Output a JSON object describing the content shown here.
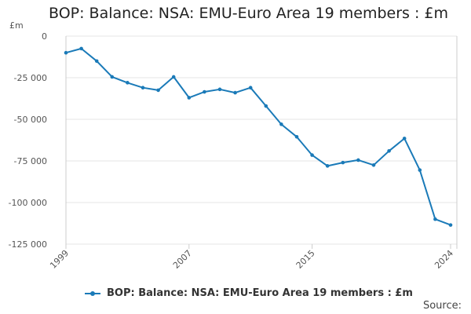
{
  "title": "BOP: Balance: NSA: EMU-Euro Area 19 members : £m",
  "source_label": "Source:",
  "chart_data": {
    "type": "line",
    "title": "BOP: Balance: NSA: EMU-Euro Area 19 members : £m",
    "ylabel": "£m",
    "xlabel": "",
    "ylim": [
      -125000,
      0
    ],
    "yticks": [
      0,
      -25000,
      -50000,
      -75000,
      -100000,
      -125000
    ],
    "ytick_labels": [
      "0",
      "-25 000",
      "-50 000",
      "-75 000",
      "-100 000",
      "-125 000"
    ],
    "xlim": [
      1999,
      2024
    ],
    "xticks": [
      1999,
      2007,
      2015,
      2024
    ],
    "xtick_labels": [
      "1999",
      "2007",
      "2015",
      "2024"
    ],
    "grid": true,
    "legend_position": "bottom",
    "color": "#1a7ab8",
    "series": [
      {
        "name": "BOP: Balance: NSA: EMU-Euro Area 19 members : £m",
        "x": [
          1999,
          2000,
          2001,
          2002,
          2003,
          2004,
          2005,
          2006,
          2007,
          2008,
          2009,
          2010,
          2011,
          2012,
          2013,
          2014,
          2015,
          2016,
          2017,
          2018,
          2019,
          2020,
          2021,
          2022,
          2023,
          2024
        ],
        "values": [
          -10000,
          -7500,
          -15000,
          -24500,
          -28000,
          -31000,
          -32500,
          -24500,
          -37000,
          -33500,
          -32000,
          -34000,
          -31000,
          -42000,
          -53000,
          -60500,
          -71500,
          -78000,
          -76000,
          -74500,
          -77500,
          -69000,
          -61500,
          -80500,
          -110000,
          -113500
        ]
      }
    ]
  }
}
